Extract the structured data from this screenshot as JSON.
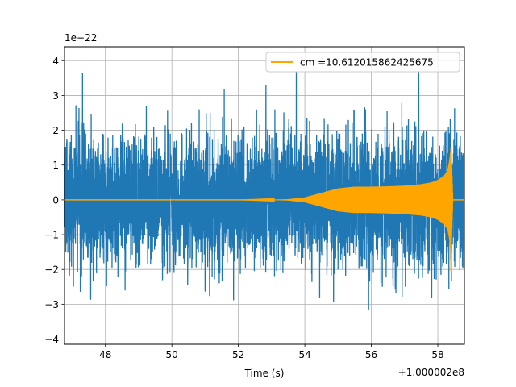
{
  "chart_data": {
    "type": "line",
    "title": "",
    "xlabel": "Time (s)",
    "ylabel": "",
    "x_offset_label": "+1.000002e8",
    "y_scale_label": "1e−22",
    "xlim": [
      46.77,
      58.8
    ],
    "ylim": [
      -4.15,
      4.4
    ],
    "x_ticks": [
      48,
      50,
      52,
      54,
      56,
      58
    ],
    "x_tick_labels": [
      "48",
      "50",
      "52",
      "54",
      "56",
      "58"
    ],
    "y_ticks": [
      -4,
      -3,
      -2,
      -1,
      0,
      1,
      2,
      3,
      4
    ],
    "y_tick_labels": [
      "−4",
      "−3",
      "−2",
      "−1",
      "0",
      "1",
      "2",
      "3",
      "4"
    ],
    "grid": true,
    "legend_position": "top-right",
    "series": [
      {
        "color": "#1f77b4",
        "kind": "noise",
        "x_range": [
          46.77,
          58.8
        ],
        "envelope_typical": 2.0,
        "envelope_peak": 3.7
      },
      {
        "name": "cm =10.612015862425675",
        "color": "#ffa500",
        "kind": "chirp",
        "x": [
          46.77,
          52.0,
          53.0,
          53.5,
          54.0,
          54.5,
          55.0,
          55.5,
          56.0,
          56.5,
          57.0,
          57.5,
          57.8,
          58.0,
          58.2,
          58.3,
          58.35,
          58.4,
          58.45,
          58.8
        ],
        "amplitude": [
          0.0,
          0.0,
          0.005,
          0.02,
          0.07,
          0.2,
          0.33,
          0.38,
          0.38,
          0.39,
          0.41,
          0.45,
          0.5,
          0.57,
          0.7,
          0.85,
          1.1,
          1.5,
          0.0,
          0.0
        ]
      }
    ]
  }
}
